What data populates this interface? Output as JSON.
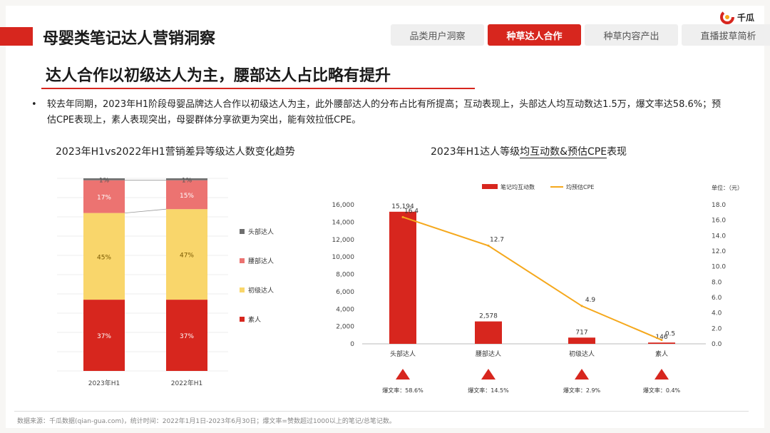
{
  "header": {
    "title": "母婴类笔记达人营销洞察",
    "logo_text": "千瓜",
    "tabs": [
      {
        "label": "品类用户洞察",
        "active": false
      },
      {
        "label": "种草达人合作",
        "active": true
      },
      {
        "label": "种草内容产出",
        "active": false
      },
      {
        "label": "直播拔草简析",
        "active": false
      }
    ]
  },
  "subtitle": "达人合作以初级达人为主，腰部达人占比略有提升",
  "bullet": "较去年同期，2023年H1阶段母婴品牌达人合作以初级达人为主，此外腰部达人的分布占比有所提高；互动表现上，头部达人均互动数达1.5万，爆文率达58.6%；预估CPE表现上，素人表现突出，母婴群体分享欲更为突出，能有效拉低CPE。",
  "footer": "数据来源：千瓜数据(qian-gua.com)，统计时间：2022年1月1日-2023年6月30日；爆文率=赞数超过1000以上的笔记/总笔记数。",
  "colors": {
    "red": "#d7261e",
    "pink": "#ec7371",
    "yellow": "#f9d66b",
    "gray": "#6e6e6e",
    "orange": "#f5a81c"
  },
  "chart_data": [
    {
      "type": "bar",
      "stacked": true,
      "title": "2023年H1vs2022年H1营销差异等级达人数变化趋势",
      "categories": [
        "2023年H1",
        "2022年H1"
      ],
      "series": [
        {
          "name": "素人",
          "values": [
            37,
            37
          ],
          "labels": [
            "37%",
            "37%"
          ]
        },
        {
          "name": "初级达人",
          "values": [
            45,
            47
          ],
          "labels": [
            "45%",
            "47%"
          ]
        },
        {
          "name": "腰部达人",
          "values": [
            17,
            15
          ],
          "labels": [
            "17%",
            "15%"
          ]
        },
        {
          "name": "头部达人",
          "values": [
            1,
            1
          ],
          "labels": [
            "1%",
            "1%"
          ]
        }
      ],
      "legend": [
        "头部达人",
        "腰部达人",
        "初级达人",
        "素人"
      ],
      "legend_position": "right",
      "grid": true
    },
    {
      "type": "bar",
      "title": "2023年H1达人等级均互动数&预估CPE表现",
      "title_underline": "均互动数&预估CPE",
      "categories": [
        "头部达人",
        "腰部达人",
        "初级达人",
        "素人"
      ],
      "series": [
        {
          "name": "笔记均互动数",
          "type": "bar",
          "axis": "left",
          "values": [
            15194,
            2578,
            717,
            146
          ],
          "labels": [
            "15,194",
            "2,578",
            "717",
            "146"
          ]
        },
        {
          "name": "均预估CPE",
          "type": "line",
          "axis": "right",
          "values": [
            16.4,
            12.7,
            4.9,
            0.5
          ],
          "labels": [
            "16.4",
            "12.7",
            "4.9",
            "0.5"
          ]
        }
      ],
      "ylim_left": [
        0,
        16000
      ],
      "yticks_left": [
        "0",
        "2,000",
        "4,000",
        "6,000",
        "8,000",
        "10,000",
        "12,000",
        "14,000",
        "16,000"
      ],
      "ylim_right": [
        0,
        18
      ],
      "yticks_right": [
        "0.0",
        "2.0",
        "4.0",
        "6.0",
        "8.0",
        "10.0",
        "12.0",
        "14.0",
        "16.0",
        "18.0"
      ],
      "unit_label": "单位：（元）",
      "legend_position": "top",
      "viral_rates": [
        "爆文率：58.6%",
        "爆文率：14.5%",
        "爆文率：2.9%",
        "爆文率：0.4%"
      ]
    }
  ]
}
